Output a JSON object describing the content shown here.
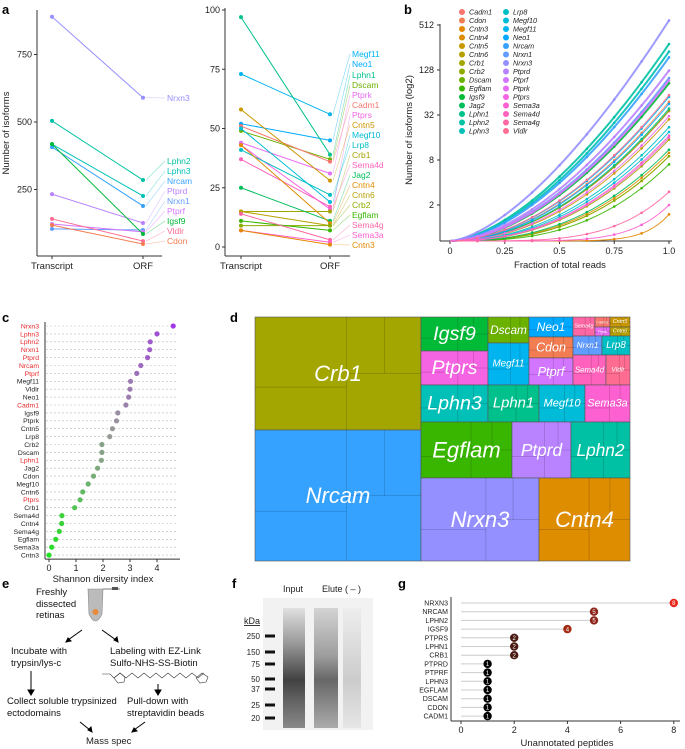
{
  "panel_labels": {
    "a": "a",
    "b": "b",
    "c": "c",
    "d": "d",
    "e": "e",
    "f": "f",
    "g": "g"
  },
  "gene_colors": {
    "Cadm1": "#F8766D",
    "Cdon": "#F27D52",
    "Cntn3": "#E58700",
    "Cntn4": "#DE8C00",
    "Cntn5": "#C99800",
    "Cntn6": "#B79F00",
    "Crb1": "#A3A500",
    "Crb2": "#8BAB00",
    "Dscam": "#6BB100",
    "Egflam": "#39B600",
    "Igsf9": "#00BA38",
    "Jag2": "#00BD5C",
    "Lphn1": "#00C08B",
    "Lphn2": "#00C1A3",
    "Lphn3": "#00C0B8",
    "Lrp8": "#00BFC4",
    "Megf10": "#00BCD8",
    "Megf11": "#00B4F0",
    "Neo1": "#00A9FF",
    "Nrcam": "#35A2FF",
    "Nrxn1": "#619CFF",
    "Nrxn3": "#9590FF",
    "Ptprd": "#B983FF",
    "Ptprf": "#D376FF",
    "Ptprk": "#E76BF3",
    "Ptprs": "#F564E3",
    "Sema3a": "#FD61D1",
    "Sema4d": "#FF62BC",
    "Sema4g": "#FF67A4",
    "Vldlr": "#FF6C91"
  },
  "chart_data": [
    {
      "id": "a-left",
      "type": "line",
      "categories": [
        "Transcript",
        "ORF"
      ],
      "ylabel": "Number of isoforms",
      "yticks": [
        250,
        500,
        750
      ],
      "ylim": [
        0,
        920
      ],
      "series": [
        {
          "name": "Nrxn3",
          "values": [
            890,
            590
          ]
        },
        {
          "name": "Lphn2",
          "values": [
            504,
            285
          ]
        },
        {
          "name": "Lphn3",
          "values": [
            418,
            226
          ]
        },
        {
          "name": "Nrcam",
          "values": [
            407,
            189
          ]
        },
        {
          "name": "Ptprd",
          "values": [
            233,
            126
          ]
        },
        {
          "name": "Nrxn1",
          "values": [
            104,
            100
          ]
        },
        {
          "name": "Ptprf",
          "values": [
            122,
            93
          ]
        },
        {
          "name": "Igsf9",
          "values": [
            418,
            85
          ]
        },
        {
          "name": "Vldlr",
          "values": [
            141,
            59
          ]
        },
        {
          "name": "Cdon",
          "values": [
            118,
            48
          ]
        }
      ]
    },
    {
      "id": "a-right",
      "type": "line",
      "categories": [
        "Transcript",
        "ORF"
      ],
      "yticks": [
        0,
        25,
        50,
        75,
        100
      ],
      "ylim": [
        0,
        100
      ],
      "series": [
        {
          "name": "Megf11",
          "values": [
            73,
            56
          ]
        },
        {
          "name": "Neo1",
          "values": [
            52,
            45
          ]
        },
        {
          "name": "Lphn1",
          "values": [
            97,
            39
          ]
        },
        {
          "name": "Dscam",
          "values": [
            49,
            37
          ]
        },
        {
          "name": "Ptprk",
          "values": [
            44,
            31
          ]
        },
        {
          "name": "Cadm1",
          "values": [
            51,
            36
          ]
        },
        {
          "name": "Ptprs",
          "values": [
            43,
            16
          ]
        },
        {
          "name": "Cntn5",
          "values": [
            58,
            28
          ]
        },
        {
          "name": "Megf10",
          "values": [
            50,
            19
          ]
        },
        {
          "name": "Lrp8",
          "values": [
            41,
            22
          ]
        },
        {
          "name": "Crb1",
          "values": [
            15,
            15
          ]
        },
        {
          "name": "Sema4d",
          "values": [
            37,
            17
          ]
        },
        {
          "name": "Jag2",
          "values": [
            25,
            11
          ]
        },
        {
          "name": "Cntn4",
          "values": [
            43,
            10
          ]
        },
        {
          "name": "Cntn6",
          "values": [
            15,
            9
          ]
        },
        {
          "name": "Crb2",
          "values": [
            9,
            9
          ]
        },
        {
          "name": "Egflam",
          "values": [
            11,
            7
          ]
        },
        {
          "name": "Sema4g",
          "values": [
            14,
            3
          ]
        },
        {
          "name": "Sema3a",
          "values": [
            7,
            2
          ]
        },
        {
          "name": "Cntn3",
          "values": [
            7,
            1
          ]
        }
      ]
    },
    {
      "id": "b",
      "type": "line",
      "xlabel": "Fraction of total reads",
      "ylabel": "Number of isoforms (log2)",
      "xticks": [
        "0",
        "0.25",
        "0.5",
        "0.75",
        "1.0"
      ],
      "xlim": [
        0,
        1
      ],
      "yticks": [
        2,
        8,
        32,
        128,
        512
      ],
      "yscale": "log2",
      "legend_position": "top-left",
      "legend": [
        "Cadm1",
        "Cdon",
        "Cntn3",
        "Cntn4",
        "Cntn5",
        "Cntn6",
        "Crb1",
        "Crb2",
        "Dscam",
        "Egflam",
        "Igsf9",
        "Jag2",
        "Lphn1",
        "Lphn2",
        "Lphn3",
        "Lrp8",
        "Megf10",
        "Megf11",
        "Neo1",
        "Nrcam",
        "Nrxn1",
        "Nrxn3",
        "Ptprd",
        "Ptprf",
        "Ptprk",
        "Ptprs",
        "Sema3a",
        "Sema4d",
        "Sema4g",
        "Vldlr"
      ]
    },
    {
      "id": "c",
      "type": "scatter",
      "xlabel": "Shannon diversity index",
      "xticks": [
        0,
        1,
        2,
        3,
        4
      ],
      "xlim": [
        -0.2,
        4.7
      ],
      "grid": "horizontal dashed",
      "low_color": "#22E022",
      "mid_color": "#999999",
      "high_color": "#A238E8",
      "highlight_label_color": "#E8282B",
      "categories": [
        "Nrxn3",
        "Lphn3",
        "Lphn2",
        "Nrxn1",
        "Ptprd",
        "Nrcam",
        "Ptprf",
        "Megf11",
        "Vldlr",
        "Neo1",
        "Cadm1",
        "Igsf9",
        "Ptprk",
        "Cntn5",
        "Lrp8",
        "Crb2",
        "Dscam",
        "Lphn1",
        "Jag2",
        "Cdon",
        "Megf10",
        "Cntn6",
        "Ptprs",
        "Crb1",
        "Sema4d",
        "Cntn4",
        "Sema4g",
        "Egflam",
        "Sema3a",
        "Cntn3"
      ],
      "values": [
        4.6,
        4.0,
        3.75,
        3.73,
        3.65,
        3.4,
        3.25,
        3.02,
        3.0,
        2.95,
        2.85,
        2.55,
        2.5,
        2.35,
        2.25,
        1.96,
        1.96,
        1.94,
        1.8,
        1.65,
        1.45,
        1.25,
        1.15,
        0.95,
        0.48,
        0.47,
        0.38,
        0.25,
        0.1,
        0.0
      ],
      "highlighted": [
        "Nrxn3",
        "Lphn3",
        "Lphn2",
        "Nrxn1",
        "Ptprd",
        "Nrcam",
        "Ptprf",
        "Cadm1",
        "Lphn1",
        "Ptprs"
      ]
    },
    {
      "id": "d",
      "type": "treemap",
      "labels": [
        "Crb1",
        "Nrcam",
        "Igsf9",
        "Ptprs",
        "Lphn3",
        "Dscam",
        "Megf11",
        "Neo1",
        "Cdon",
        "Ptprf",
        "Sema4g",
        "Cadm1",
        "Ptprk",
        "Cntn5",
        "Cntn6",
        "Nrxn1",
        "Lrp8",
        "Sema4d",
        "Vldlr",
        "Lphn1",
        "Megf10",
        "Sema3a",
        "Egflam",
        "Ptprd",
        "Lphn2",
        "Nrxn3",
        "Cntn4"
      ]
    },
    {
      "id": "g",
      "type": "lollipop",
      "xlabel": "Unannotated peptides",
      "xticks": [
        0,
        2,
        4,
        6,
        8
      ],
      "xlim": [
        0,
        8
      ],
      "categories": [
        "NRXN3",
        "NRCAM",
        "LPHN2",
        "IGSF9",
        "PTPRS",
        "LPHN1",
        "CRB1",
        "PTPRD",
        "PTPRF",
        "LPHN3",
        "EGFLAM",
        "DSCAM",
        "CDON",
        "CADM1"
      ],
      "values": [
        8,
        5,
        5,
        4,
        2,
        2,
        2,
        1,
        1,
        1,
        1,
        1,
        1,
        1
      ],
      "colors": {
        "8": "#E8261C",
        "5": "#8E2318",
        "4": "#A02A10",
        "2": "#4A1A10",
        "1": "#000000"
      }
    }
  ],
  "diagram_e": {
    "start": "Freshly dissected retinas",
    "left_step": "Incubate with trypsin/lys-c",
    "right_step": "Labeling with EZ-Link Sulfo-NHS-SS-Biotin",
    "left_result": "Collect soluble trypsinized ectodomains",
    "right_result": "Pull-down with streptavidin beads",
    "end": "Mass spec"
  },
  "gel_f": {
    "lanes": [
      "Input",
      "Elute ( – )"
    ],
    "unit": "kDa",
    "markers": [
      "250",
      "150",
      "75",
      "50",
      "37",
      "25",
      "20"
    ]
  }
}
